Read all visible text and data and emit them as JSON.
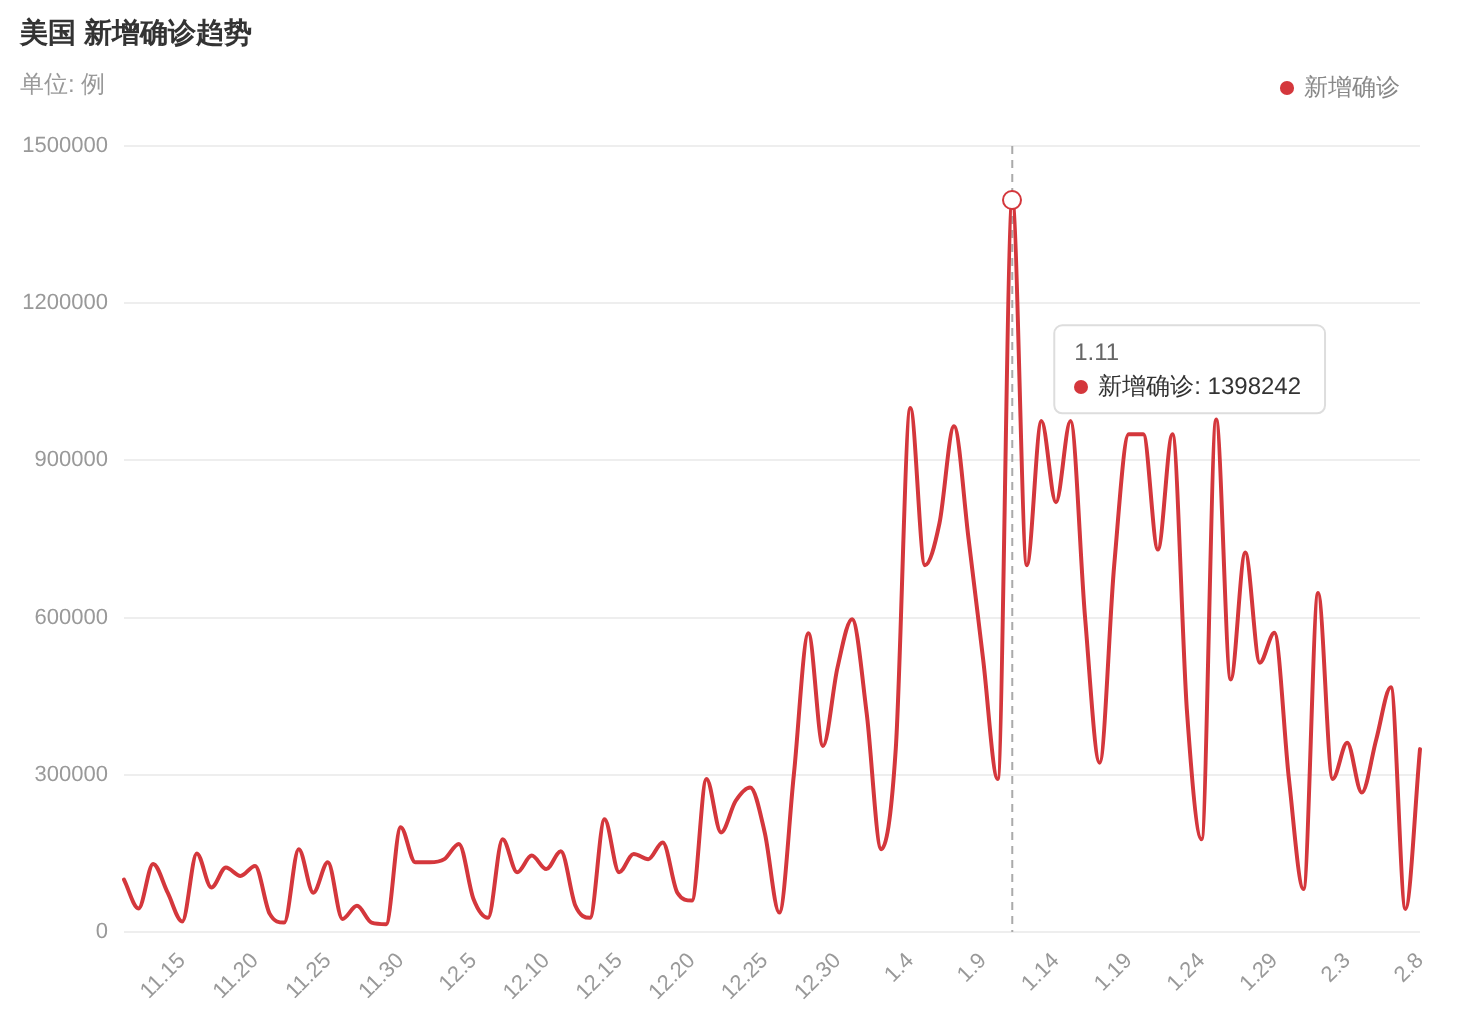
{
  "chart_data": {
    "type": "line",
    "title": "美国 新增确诊趋势",
    "subtitle": "单位: 例",
    "categories": [
      null,
      null,
      null,
      null,
      "11.15",
      null,
      null,
      null,
      null,
      "11.20",
      null,
      null,
      null,
      null,
      "11.25",
      null,
      null,
      null,
      null,
      "11.30",
      null,
      null,
      null,
      null,
      "12.5",
      null,
      null,
      null,
      null,
      "12.10",
      null,
      null,
      null,
      null,
      "12.15",
      null,
      null,
      null,
      null,
      "12.20",
      null,
      null,
      null,
      null,
      "12.25",
      null,
      null,
      null,
      null,
      "12.30",
      null,
      null,
      null,
      null,
      "1.4",
      null,
      null,
      null,
      null,
      "1.9",
      null,
      null,
      null,
      null,
      "1.14",
      null,
      null,
      null,
      null,
      "1.19",
      null,
      null,
      null,
      null,
      "1.24",
      null,
      null,
      null,
      null,
      "1.29",
      null,
      null,
      null,
      null,
      "2.3",
      null,
      null,
      null,
      null,
      "2.8"
    ],
    "series": [
      {
        "name": "新增确诊",
        "color": "#d4373c",
        "values": [
          100000,
          45000,
          130000,
          75000,
          20000,
          150000,
          85000,
          123000,
          107000,
          126000,
          35000,
          18000,
          158000,
          75000,
          133000,
          25000,
          50000,
          18000,
          15000,
          200000,
          133000,
          133000,
          139000,
          168000,
          63000,
          27000,
          177000,
          114000,
          146000,
          120000,
          154000,
          50000,
          27000,
          215000,
          114000,
          149000,
          139000,
          171000,
          75000,
          60000,
          292000,
          190000,
          250000,
          276000,
          190000,
          37000,
          300000,
          570000,
          355000,
          505000,
          597000,
          418000,
          158000,
          350000,
          1000000,
          700000,
          780000,
          965000,
          750000,
          520000,
          292000,
          1398242,
          700000,
          975000,
          820000,
          975000,
          600000,
          323000,
          700000,
          950000,
          950000,
          730000,
          950000,
          420000,
          177000,
          978000,
          482000,
          724000,
          514000,
          571000,
          292000,
          82000,
          647000,
          292000,
          361000,
          266000,
          368000,
          467000,
          44000,
          349000
        ]
      }
    ],
    "ylim": [
      0,
      1500000
    ],
    "yticks": [
      0,
      300000,
      600000,
      900000,
      1200000,
      1500000
    ],
    "annotations": [
      "1.11",
      "新增确诊: 1398242"
    ],
    "grid": "y",
    "legend": "top right",
    "marker": "none",
    "line_style": "solid"
  }
}
